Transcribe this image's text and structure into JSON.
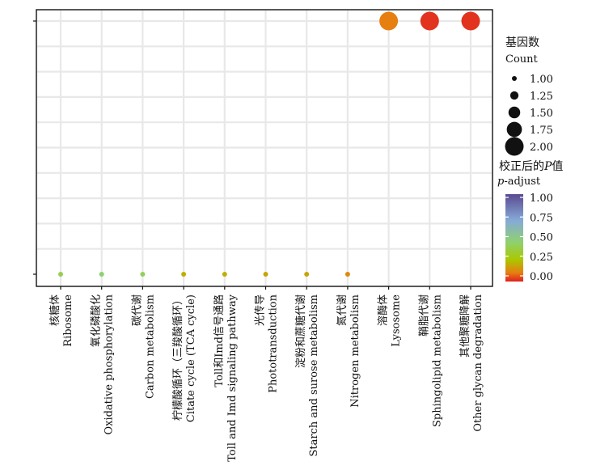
{
  "chart_data": {
    "type": "scatter",
    "x_categories": [
      {
        "zh": "核糖体",
        "en": "Ribosome"
      },
      {
        "zh": "氧化磷酸化",
        "en": "Oxidative phosphorylation"
      },
      {
        "zh": "碳代谢",
        "en": "Carbon metabolism"
      },
      {
        "zh": "柠檬酸循环（三羧酸循环）",
        "en": "Citate cycle (TCA cycle)"
      },
      {
        "zh": "Toll和Imd信号通路",
        "en": "Toll and Imd signaling pathway"
      },
      {
        "zh": "光传导",
        "en": "Phototransduction"
      },
      {
        "zh": "淀粉和蔗糖代谢",
        "en": "Starch and surose metabolism"
      },
      {
        "zh": "氮代谢",
        "en": "Nitrogen metabolism"
      },
      {
        "zh": "溶酶体",
        "en": "Lysosome"
      },
      {
        "zh": "鞘脂代谢",
        "en": "Sphingolipid metabolism"
      },
      {
        "zh": "其他聚糖降解",
        "en": "Other glycan degradation"
      }
    ],
    "points": [
      {
        "x": 0,
        "y": 0,
        "count": 1,
        "p_adjust": 0.4
      },
      {
        "x": 1,
        "y": 0,
        "count": 1,
        "p_adjust": 0.45
      },
      {
        "x": 2,
        "y": 0,
        "count": 1,
        "p_adjust": 0.42
      },
      {
        "x": 3,
        "y": 0,
        "count": 1,
        "p_adjust": 0.2
      },
      {
        "x": 4,
        "y": 0,
        "count": 1,
        "p_adjust": 0.2
      },
      {
        "x": 5,
        "y": 0,
        "count": 1,
        "p_adjust": 0.18
      },
      {
        "x": 6,
        "y": 0,
        "count": 1,
        "p_adjust": 0.18
      },
      {
        "x": 7,
        "y": 0,
        "count": 1,
        "p_adjust": 0.12
      },
      {
        "x": 8,
        "y": 1,
        "count": 2,
        "p_adjust": 0.1
      },
      {
        "x": 9,
        "y": 1,
        "count": 2,
        "p_adjust": 0.02
      },
      {
        "x": 10,
        "y": 1,
        "count": 2,
        "p_adjust": 0.02
      }
    ],
    "size_legend": {
      "title_zh": "基因数",
      "title_en": "Count",
      "values": [
        "1.00",
        "1.25",
        "1.50",
        "1.75",
        "2.00"
      ],
      "range": [
        1,
        2
      ]
    },
    "color_legend": {
      "title_zh_prefix": "校正后的",
      "title_zh_italic": "P",
      "title_zh_suffix": "值",
      "title_en_italic": "p",
      "title_en_suffix": "-adjust",
      "ticks": [
        "1.00",
        "0.75",
        "0.50",
        "0.25",
        "0.00"
      ],
      "range": [
        0,
        1
      ],
      "colors": [
        "#e02020",
        "#e67e10",
        "#aac800",
        "#8fd070",
        "#86aad8",
        "#5a4a90"
      ]
    },
    "grid": true
  }
}
